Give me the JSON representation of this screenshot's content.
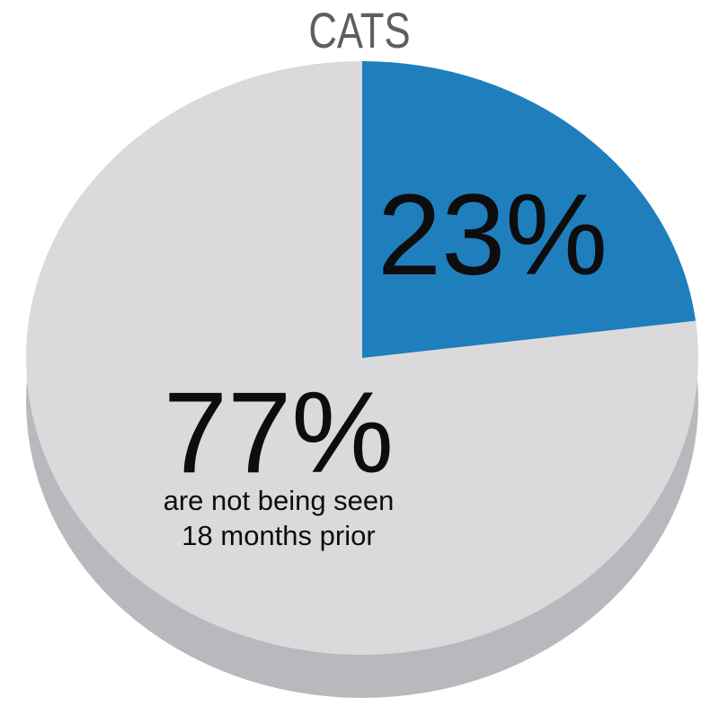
{
  "chart_data": {
    "type": "pie",
    "title": "CATS",
    "slices": [
      {
        "label": "23%",
        "value": 23,
        "color": "#1f7fbd",
        "note": ""
      },
      {
        "label": "77%",
        "value": 77,
        "color": "#dadadc",
        "note_lines": [
          "are not being seen",
          "18 months prior"
        ]
      }
    ],
    "shadow_color": "#b9b9bd"
  }
}
